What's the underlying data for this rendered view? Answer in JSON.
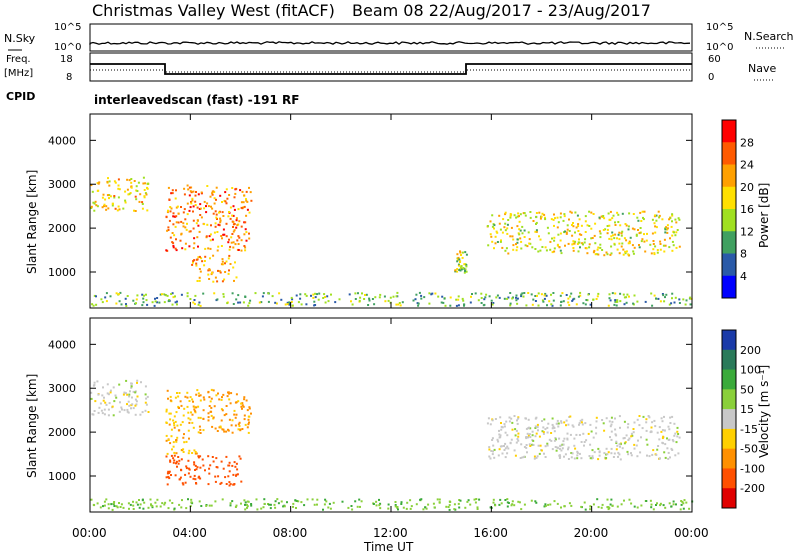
{
  "header": {
    "title": "Christmas Valley West (fitACF)",
    "beam": "Beam 08 22/Aug/2017 - 23/Aug/2017"
  },
  "panels": {
    "nsky": {
      "label": "N.Sky",
      "tick_top": "10^5",
      "tick_bottom": "10^0",
      "right_tick_top": "10^5",
      "right_tick_bottom": "10^0",
      "right_label": "N.Search"
    },
    "freq": {
      "label_1": "Freq.",
      "label_2": "[MHz]",
      "tick_top": "18",
      "tick_bottom": "8",
      "right_tick_top": "60",
      "right_tick_bottom": "0",
      "right_label": "Nave"
    },
    "cpid": {
      "label": "CPID",
      "value": "interleavedscan (fast) -191 RF"
    }
  },
  "time_axis": {
    "label": "Time UT",
    "ticks": [
      "00:00",
      "04:00",
      "08:00",
      "12:00",
      "16:00",
      "20:00",
      "00:00"
    ]
  },
  "power_colorbar": {
    "label": "Power [dB]",
    "ticks": [
      "28",
      "24",
      "20",
      "16",
      "12",
      "8",
      "4"
    ],
    "colors": [
      "#ff0000",
      "#ff5a00",
      "#ffa000",
      "#ffe000",
      "#a0e020",
      "#40a060",
      "#2a5aa8",
      "#0000ff"
    ]
  },
  "velocity_colorbar": {
    "label": "Velocity [m s⁻¹]",
    "ticks": [
      "200",
      "100",
      "50",
      "15",
      "-15",
      "-50",
      "-100",
      "-200"
    ],
    "colors": [
      "#1a3aa8",
      "#2a7a5a",
      "#3aaa3a",
      "#8ad03a",
      "#c8c8c8",
      "#ffd000",
      "#ff9000",
      "#ff5000",
      "#e00000"
    ]
  },
  "chart_data": [
    {
      "type": "heatmap",
      "name_on_chart": "Power",
      "ylabel": "Slant Range [km]",
      "xlabel": "Time UT",
      "x_range_hours": [
        0,
        24
      ],
      "ylim": [
        180,
        4600
      ],
      "y_ticks": [
        1000,
        2000,
        3000,
        4000
      ],
      "value_scale": [
        0,
        30
      ],
      "regions": [
        {
          "t0": 0.0,
          "t1": 2.3,
          "r0": 2400,
          "r1": 3200,
          "level": 0.6
        },
        {
          "t0": 3.0,
          "t1": 6.4,
          "r0": 1500,
          "r1": 3000,
          "level": 0.78
        },
        {
          "t0": 4.0,
          "t1": 5.8,
          "r0": 800,
          "r1": 1400,
          "level": 0.72
        },
        {
          "t0": 0.0,
          "t1": 24.0,
          "r0": 250,
          "r1": 550,
          "level": 0.35
        },
        {
          "t0": 15.8,
          "t1": 23.5,
          "r0": 1400,
          "r1": 2400,
          "level": 0.55
        },
        {
          "t0": 14.5,
          "t1": 15.0,
          "r0": 1000,
          "r1": 1500,
          "level": 0.5
        }
      ]
    },
    {
      "type": "heatmap",
      "name_on_chart": "Velocity",
      "ylabel": "Slant Range [km]",
      "xlabel": "Time UT",
      "x_range_hours": [
        0,
        24
      ],
      "ylim": [
        180,
        4600
      ],
      "y_ticks": [
        1000,
        2000,
        3000,
        4000
      ],
      "value_scale": [
        -200,
        200
      ],
      "regions": [
        {
          "t0": 0.0,
          "t1": 2.3,
          "r0": 2400,
          "r1": 3200,
          "value": 0
        },
        {
          "t0": 3.0,
          "t1": 4.3,
          "r0": 1500,
          "r1": 3000,
          "value": -40
        },
        {
          "t0": 4.3,
          "t1": 6.4,
          "r0": 2000,
          "r1": 3000,
          "value": -60
        },
        {
          "t0": 3.0,
          "t1": 6.0,
          "r0": 800,
          "r1": 1500,
          "value": -120
        },
        {
          "t0": 0.0,
          "t1": 24.0,
          "r0": 250,
          "r1": 500,
          "value": 40
        },
        {
          "t0": 15.8,
          "t1": 23.5,
          "r0": 1400,
          "r1": 2400,
          "value": 0
        }
      ]
    }
  ]
}
